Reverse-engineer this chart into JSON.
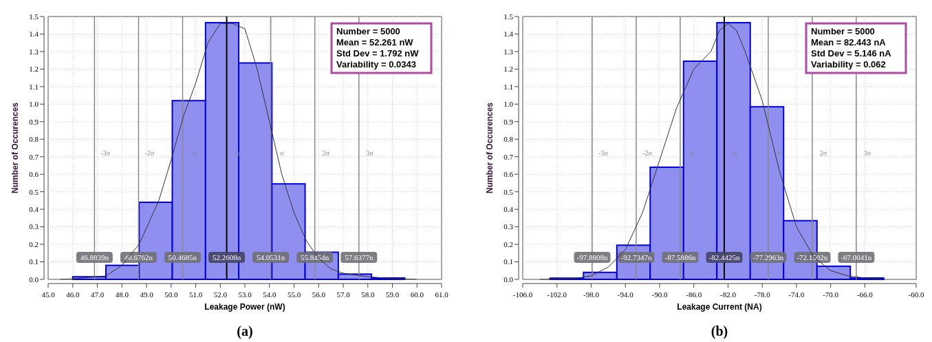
{
  "chart_data": [
    {
      "type": "histogram",
      "title": "(a)",
      "xlabel": "Leakage Power (nW)",
      "ylabel": "Number of Occurences",
      "grid": true,
      "bins": [
        46.0,
        47.35,
        48.7,
        50.05,
        51.4,
        52.75,
        54.1,
        55.45,
        56.8,
        58.15,
        59.5
      ],
      "series": [
        {
          "color": "#8f8ff0",
          "values": [
            0.015,
            0.08,
            0.44,
            1.02,
            1.465,
            1.235,
            0.545,
            0.155,
            0.03,
            0.008
          ]
        },
        {
          "type": "line",
          "color": "#333333",
          "x": [
            45.5,
            46.0,
            47.35,
            48.0,
            48.7,
            49.5,
            50.0,
            50.5,
            51.0,
            51.5,
            52.0,
            52.5,
            53.0,
            53.5,
            54.0,
            54.5,
            55.0,
            55.5,
            56.0,
            56.5,
            57.0,
            58.0,
            59.0,
            60.0
          ],
          "values": [
            0,
            0.003,
            0.02,
            0.08,
            0.2,
            0.45,
            0.68,
            0.93,
            1.12,
            1.35,
            1.46,
            1.46,
            1.43,
            1.2,
            0.9,
            0.6,
            0.38,
            0.22,
            0.12,
            0.06,
            0.035,
            0.015,
            0.005,
            0
          ]
        }
      ],
      "xlim": [
        45,
        61
      ],
      "xticks": [
        {
          "value": 45,
          "label": "45.0"
        },
        {
          "value": 46,
          "label": "46.0"
        },
        {
          "value": 47,
          "label": "47.0"
        },
        {
          "value": 48,
          "label": "48.0"
        },
        {
          "value": 49,
          "label": "49.0"
        },
        {
          "value": 50,
          "label": "50.0"
        },
        {
          "value": 51,
          "label": "51.0"
        },
        {
          "value": 52,
          "label": "52.0"
        },
        {
          "value": 53,
          "label": "53.0"
        },
        {
          "value": 54,
          "label": "54.0"
        },
        {
          "value": 55,
          "label": "55.0"
        },
        {
          "value": 56,
          "label": "56.0"
        },
        {
          "value": 57,
          "label": "57.0"
        },
        {
          "value": 58,
          "label": "58.0"
        },
        {
          "value": 59,
          "label": "59.0"
        },
        {
          "value": 60,
          "label": "60.0"
        },
        {
          "value": 61,
          "label": "61.0"
        }
      ],
      "ylim": [
        0,
        1.5
      ],
      "yticks": [
        {
          "value": 0,
          "label": "0.0"
        },
        {
          "value": 0.1,
          "label": "0.1"
        },
        {
          "value": 0.2,
          "label": "0.2"
        },
        {
          "value": 0.3,
          "label": "0.3"
        },
        {
          "value": 0.4,
          "label": "0.4"
        },
        {
          "value": 0.5,
          "label": "0.5"
        },
        {
          "value": 0.6,
          "label": "0.6"
        },
        {
          "value": 0.7,
          "label": "0.7"
        },
        {
          "value": 0.8,
          "label": "0.8"
        },
        {
          "value": 0.9,
          "label": "0.9"
        },
        {
          "value": 1,
          "label": "1.0"
        },
        {
          "value": 1.1,
          "label": "1.1"
        },
        {
          "value": 1.2,
          "label": "1.2"
        },
        {
          "value": 1.3,
          "label": "1.3"
        },
        {
          "value": 1.4,
          "label": "1.4"
        },
        {
          "value": 1.5,
          "label": "1.5"
        }
      ],
      "ref_lines": [
        {
          "axis": "x",
          "value": 46.8839,
          "label": "46.8839n",
          "color": "#888888"
        },
        {
          "axis": "x",
          "value": 48.6762,
          "label": "48.6762n",
          "color": "#888888"
        },
        {
          "axis": "x",
          "value": 50.4685,
          "label": "50.4685n",
          "color": "#888888"
        },
        {
          "axis": "x",
          "value": 52.2608,
          "label": "52.2608n",
          "color": "#000000"
        },
        {
          "axis": "x",
          "value": 54.0531,
          "label": "54.0531n",
          "color": "#888888"
        },
        {
          "axis": "x",
          "value": 55.8454,
          "label": "55.8454n",
          "color": "#888888"
        },
        {
          "axis": "x",
          "value": 57.6377,
          "label": "57.6377n",
          "color": "#888888"
        }
      ],
      "annotations": [
        "Number = 5000",
        "Mean = 52.261 nW",
        "Std Dev = 1.792 nW",
        "Variability = 0.0343",
        "-3σ",
        "-2σ",
        "-σ",
        "μ",
        "σ",
        "2σ",
        "3σ"
      ]
    },
    {
      "type": "histogram",
      "title": "(b)",
      "xlabel": "Leakage Current (NA)",
      "ylabel": "Number of Occurences",
      "grid": true,
      "bins": [
        -102.8,
        -98.9,
        -95.0,
        -91.1,
        -87.2,
        -83.3,
        -79.4,
        -75.5,
        -71.6,
        -67.7,
        -63.8
      ],
      "series": [
        {
          "color": "#8f8ff0",
          "values": [
            0.007,
            0.04,
            0.195,
            0.64,
            1.245,
            1.465,
            0.985,
            0.335,
            0.075,
            0.008
          ]
        },
        {
          "type": "line",
          "color": "#333333",
          "x": [
            -104,
            -100,
            -98,
            -96,
            -94,
            -92,
            -90,
            -88,
            -86,
            -84,
            -83,
            -82,
            -81,
            -80,
            -78,
            -76,
            -74,
            -72,
            -70,
            -68,
            -66,
            -64
          ],
          "values": [
            0,
            0.005,
            0.02,
            0.07,
            0.17,
            0.38,
            0.68,
            0.98,
            1.2,
            1.3,
            1.42,
            1.46,
            1.42,
            1.3,
            1.02,
            0.62,
            0.3,
            0.13,
            0.05,
            0.02,
            0.008,
            0.002
          ]
        }
      ],
      "xlim": [
        -106,
        -60
      ],
      "xticks": [
        {
          "value": -106,
          "label": "-106.0"
        },
        {
          "value": -102,
          "label": "-102.0"
        },
        {
          "value": -98,
          "label": "-98.0"
        },
        {
          "value": -94,
          "label": "-94.0"
        },
        {
          "value": -90,
          "label": "-90.0"
        },
        {
          "value": -86,
          "label": "-86.0"
        },
        {
          "value": -82,
          "label": "-82.0"
        },
        {
          "value": -78,
          "label": "-78.0"
        },
        {
          "value": -74,
          "label": "-74.0"
        },
        {
          "value": -70,
          "label": "-70.0"
        },
        {
          "value": -66,
          "label": "-66.0"
        },
        {
          "value": -60,
          "label": "-60.0"
        }
      ],
      "ylim": [
        0,
        1.5
      ],
      "yticks": [
        {
          "value": 0,
          "label": "0.0"
        },
        {
          "value": 0.1,
          "label": "0.1"
        },
        {
          "value": 0.2,
          "label": "0.2"
        },
        {
          "value": 0.3,
          "label": "0.3"
        },
        {
          "value": 0.4,
          "label": "0.4"
        },
        {
          "value": 0.5,
          "label": "0.5"
        },
        {
          "value": 0.6,
          "label": "0.6"
        },
        {
          "value": 0.7,
          "label": "0.7"
        },
        {
          "value": 0.8,
          "label": "0.8"
        },
        {
          "value": 0.9,
          "label": "0.9"
        },
        {
          "value": 1,
          "label": "1.0"
        },
        {
          "value": 1.1,
          "label": "1.1"
        },
        {
          "value": 1.2,
          "label": "1.2"
        },
        {
          "value": 1.3,
          "label": "1.3"
        },
        {
          "value": 1.4,
          "label": "1.4"
        },
        {
          "value": 1.5,
          "label": "1.5"
        }
      ],
      "ref_lines": [
        {
          "axis": "x",
          "value": -97.8808,
          "label": "-97.8808n",
          "color": "#888888"
        },
        {
          "axis": "x",
          "value": -92.7347,
          "label": "-92.7347n",
          "color": "#888888"
        },
        {
          "axis": "x",
          "value": -87.5886,
          "label": "-87.5886n",
          "color": "#888888"
        },
        {
          "axis": "x",
          "value": -82.4425,
          "label": "-82.4425n",
          "color": "#000000"
        },
        {
          "axis": "x",
          "value": -77.2963,
          "label": "-77.2963n",
          "color": "#888888"
        },
        {
          "axis": "x",
          "value": -72.1502,
          "label": "-72.1502n",
          "color": "#888888"
        },
        {
          "axis": "x",
          "value": -67.0041,
          "label": "-67.0041n",
          "color": "#888888"
        }
      ],
      "annotations": [
        "Number = 5000",
        "Mean = 82.443 nA",
        "Std Dev = 5.146 nA",
        "Variability = 0.062",
        "-3σ",
        "-2σ",
        "-σ",
        "μ",
        "σ",
        "2σ",
        "3σ"
      ]
    }
  ]
}
